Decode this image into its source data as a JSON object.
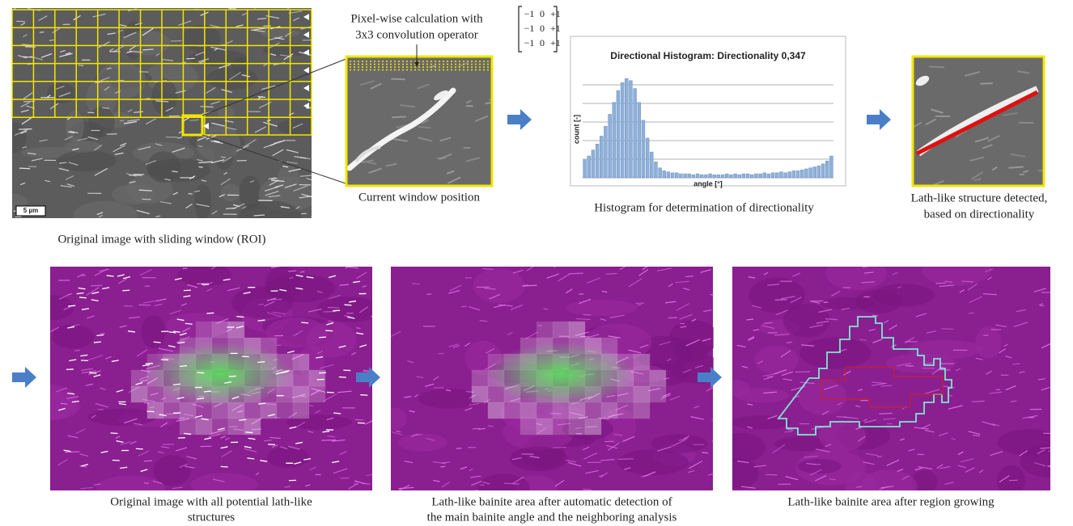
{
  "top": {
    "roi_caption": "Original image with sliding window (ROI)",
    "scale_bar": "5 µm",
    "convolution_label": [
      "Pixel-wise calculation with",
      "3x3 convolution operator"
    ],
    "kernel": [
      [
        "−1",
        "0",
        "+1"
      ],
      [
        "−1",
        "0",
        "+1"
      ],
      [
        "−1",
        "0",
        "+1"
      ]
    ],
    "window_caption": "Current window position",
    "histogram": {
      "title": "Directional Histogram: Directionality 0,347",
      "x_label": "angle [°]",
      "y_label": "count [-]",
      "ylim": [
        0,
        110
      ],
      "counts": [
        18,
        22,
        28,
        34,
        42,
        52,
        64,
        76,
        88,
        96,
        100,
        98,
        90,
        76,
        58,
        40,
        26,
        16,
        10,
        7,
        6,
        5,
        5,
        4,
        4,
        4,
        3,
        4,
        3,
        3,
        4,
        3,
        3,
        3,
        4,
        3,
        4,
        3,
        4,
        4,
        3,
        4,
        4,
        5,
        4,
        5,
        5,
        6,
        5,
        6,
        7,
        7,
        8,
        9,
        10,
        11,
        12,
        14,
        17,
        22
      ]
    },
    "histogram_caption": "Histogram for determination of directionality",
    "detected_caption": [
      "Lath-like structure detected,",
      "based on directionality"
    ]
  },
  "bottom": {
    "captions": [
      [
        "Original image with all potential lath-like",
        "structures"
      ],
      [
        "Lath-like bainite area after automatic detection  of",
        "the main bainite angle and the neighboring analysis"
      ],
      [
        "Lath-like bainite area after region growing"
      ]
    ]
  }
}
